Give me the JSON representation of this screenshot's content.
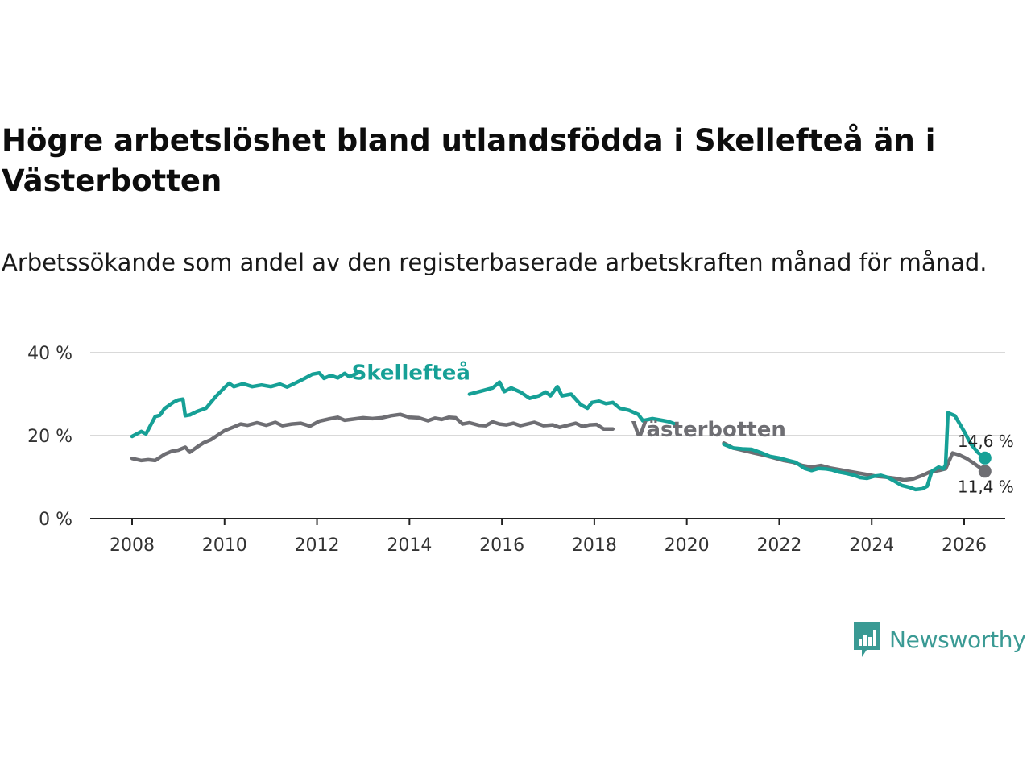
{
  "title": "Högre arbetslöshet bland utlandsfödda i Skellefteå än i Västerbotten",
  "subtitle": "Arbetssökande som andel av den registerbaserade arbetskraften månad för månad.",
  "brand": {
    "name": "Newsworthy",
    "icon": "newsworthy-logo-icon",
    "color": "#3a9a94"
  },
  "chart_data": {
    "type": "line",
    "title": "Högre arbetslöshet bland utlandsfödda i Skellefteå än i Västerbotten",
    "subtitle": "Arbetssökande som andel av den registerbaserade arbetskraften månad för månad.",
    "xlabel": "",
    "ylabel": "",
    "xlim": [
      2008,
      2026
    ],
    "ylim": [
      0,
      40
    ],
    "grid": true,
    "x_ticks": [
      2008,
      2010,
      2012,
      2014,
      2016,
      2018,
      2020,
      2022,
      2024,
      2026
    ],
    "x_tick_labels": [
      "2008",
      "2010",
      "2012",
      "2014",
      "2016",
      "2018",
      "2020",
      "2022",
      "2024",
      "2026"
    ],
    "y_ticks": [
      0,
      20,
      40
    ],
    "y_tick_labels": [
      "0 %",
      "20 %",
      "40 %"
    ],
    "series": [
      {
        "name": "Skellefteå",
        "color": "#16a096",
        "label_at": [
          2012.75,
          33.5
        ],
        "end_label": "14,6 %",
        "end_value": 14.6,
        "points": [
          [
            2008.0,
            19.8
          ],
          [
            2008.2,
            21.0
          ],
          [
            2008.3,
            20.4
          ],
          [
            2008.5,
            24.6
          ],
          [
            2008.6,
            24.9
          ],
          [
            2008.7,
            26.5
          ],
          [
            2008.8,
            27.3
          ],
          [
            2008.9,
            28.1
          ],
          [
            2009.0,
            28.6
          ],
          [
            2009.1,
            28.8
          ],
          [
            2009.15,
            24.8
          ],
          [
            2009.25,
            25.0
          ],
          [
            2009.4,
            25.8
          ],
          [
            2009.6,
            26.6
          ],
          [
            2009.8,
            29.3
          ],
          [
            2010.0,
            31.6
          ],
          [
            2010.1,
            32.6
          ],
          [
            2010.2,
            31.8
          ],
          [
            2010.4,
            32.5
          ],
          [
            2010.6,
            31.8
          ],
          [
            2010.8,
            32.2
          ],
          [
            2011.0,
            31.8
          ],
          [
            2011.2,
            32.4
          ],
          [
            2011.35,
            31.7
          ],
          [
            2011.5,
            32.5
          ],
          [
            2011.7,
            33.6
          ],
          [
            2011.9,
            34.8
          ],
          [
            2012.05,
            35.1
          ],
          [
            2012.15,
            33.8
          ],
          [
            2012.3,
            34.5
          ],
          [
            2012.45,
            33.9
          ],
          [
            2012.6,
            35.0
          ],
          [
            2012.7,
            34.2
          ],
          [
            2012.9,
            35.2
          ],
          [
            2015.3,
            30.0
          ],
          [
            2015.6,
            30.9
          ],
          [
            2015.8,
            31.5
          ],
          [
            2015.95,
            32.9
          ],
          [
            2016.05,
            30.6
          ],
          [
            2016.2,
            31.5
          ],
          [
            2016.4,
            30.5
          ],
          [
            2016.6,
            29.0
          ],
          [
            2016.8,
            29.6
          ],
          [
            2016.95,
            30.5
          ],
          [
            2017.05,
            29.6
          ],
          [
            2017.2,
            31.8
          ],
          [
            2017.3,
            29.6
          ],
          [
            2017.5,
            30.0
          ],
          [
            2017.7,
            27.5
          ],
          [
            2017.85,
            26.6
          ],
          [
            2017.95,
            28.0
          ],
          [
            2018.1,
            28.3
          ],
          [
            2018.25,
            27.7
          ],
          [
            2018.4,
            28.0
          ],
          [
            2018.55,
            26.6
          ],
          [
            2018.75,
            26.1
          ],
          [
            2018.95,
            25.1
          ],
          [
            2019.05,
            23.6
          ],
          [
            2019.25,
            24.1
          ],
          [
            2019.45,
            23.7
          ],
          [
            2019.6,
            23.4
          ],
          [
            2019.75,
            22.8
          ],
          [
            2020.8,
            17.9
          ],
          [
            2021.0,
            17.0
          ],
          [
            2021.2,
            16.8
          ],
          [
            2021.4,
            16.7
          ],
          [
            2021.6,
            15.9
          ],
          [
            2021.8,
            15.0
          ],
          [
            2022.0,
            14.6
          ],
          [
            2022.2,
            14.0
          ],
          [
            2022.35,
            13.6
          ],
          [
            2022.55,
            12.1
          ],
          [
            2022.7,
            11.6
          ],
          [
            2022.85,
            12.1
          ],
          [
            2023.0,
            12.0
          ],
          [
            2023.15,
            11.7
          ],
          [
            2023.3,
            11.2
          ],
          [
            2023.45,
            10.9
          ],
          [
            2023.6,
            10.5
          ],
          [
            2023.75,
            9.9
          ],
          [
            2023.9,
            9.7
          ],
          [
            2024.05,
            10.2
          ],
          [
            2024.2,
            10.4
          ],
          [
            2024.35,
            9.9
          ],
          [
            2024.5,
            9.0
          ],
          [
            2024.65,
            8.0
          ],
          [
            2024.8,
            7.6
          ],
          [
            2024.95,
            7.0
          ],
          [
            2025.1,
            7.2
          ],
          [
            2025.2,
            7.8
          ],
          [
            2025.3,
            11.4
          ],
          [
            2025.45,
            12.4
          ],
          [
            2025.55,
            12.0
          ],
          [
            2025.6,
            13.0
          ],
          [
            2025.65,
            25.5
          ],
          [
            2025.8,
            24.8
          ],
          [
            2025.9,
            22.9
          ],
          [
            2026.0,
            21.0
          ],
          [
            2026.15,
            17.9
          ],
          [
            2026.3,
            15.9
          ],
          [
            2026.45,
            14.6
          ]
        ]
      },
      {
        "name": "Västerbotten",
        "color": "#6e6e73",
        "label_at": [
          2018.8,
          19.8
        ],
        "end_label": "11,4 %",
        "end_value": 11.4,
        "points": [
          [
            2008.0,
            14.5
          ],
          [
            2008.2,
            14.0
          ],
          [
            2008.35,
            14.2
          ],
          [
            2008.5,
            14.0
          ],
          [
            2008.7,
            15.5
          ],
          [
            2008.85,
            16.2
          ],
          [
            2009.0,
            16.5
          ],
          [
            2009.15,
            17.2
          ],
          [
            2009.25,
            16.0
          ],
          [
            2009.4,
            17.2
          ],
          [
            2009.55,
            18.3
          ],
          [
            2009.7,
            19.0
          ],
          [
            2009.85,
            20.1
          ],
          [
            2010.0,
            21.2
          ],
          [
            2010.2,
            22.1
          ],
          [
            2010.35,
            22.8
          ],
          [
            2010.5,
            22.5
          ],
          [
            2010.7,
            23.1
          ],
          [
            2010.9,
            22.5
          ],
          [
            2011.1,
            23.2
          ],
          [
            2011.25,
            22.4
          ],
          [
            2011.45,
            22.8
          ],
          [
            2011.65,
            23.0
          ],
          [
            2011.85,
            22.3
          ],
          [
            2012.05,
            23.5
          ],
          [
            2012.25,
            24.0
          ],
          [
            2012.45,
            24.4
          ],
          [
            2012.6,
            23.7
          ],
          [
            2012.8,
            24.0
          ],
          [
            2013.0,
            24.3
          ],
          [
            2013.2,
            24.1
          ],
          [
            2013.4,
            24.3
          ],
          [
            2013.6,
            24.8
          ],
          [
            2013.8,
            25.1
          ],
          [
            2014.0,
            24.4
          ],
          [
            2014.2,
            24.3
          ],
          [
            2014.4,
            23.6
          ],
          [
            2014.55,
            24.2
          ],
          [
            2014.7,
            23.9
          ],
          [
            2014.85,
            24.4
          ],
          [
            2015.0,
            24.3
          ],
          [
            2015.15,
            22.8
          ],
          [
            2015.3,
            23.1
          ],
          [
            2015.5,
            22.5
          ],
          [
            2015.65,
            22.4
          ],
          [
            2015.8,
            23.3
          ],
          [
            2015.95,
            22.8
          ],
          [
            2016.1,
            22.6
          ],
          [
            2016.25,
            23.0
          ],
          [
            2016.4,
            22.4
          ],
          [
            2016.55,
            22.8
          ],
          [
            2016.7,
            23.2
          ],
          [
            2016.9,
            22.4
          ],
          [
            2017.1,
            22.6
          ],
          [
            2017.25,
            22.0
          ],
          [
            2017.4,
            22.4
          ],
          [
            2017.6,
            23.0
          ],
          [
            2017.75,
            22.2
          ],
          [
            2017.9,
            22.6
          ],
          [
            2018.05,
            22.7
          ],
          [
            2018.2,
            21.6
          ],
          [
            2018.4,
            21.6
          ],
          [
            2020.8,
            18.2
          ],
          [
            2021.0,
            17.0
          ],
          [
            2021.2,
            16.5
          ],
          [
            2021.45,
            15.8
          ],
          [
            2021.7,
            15.2
          ],
          [
            2021.9,
            14.6
          ],
          [
            2022.1,
            14.0
          ],
          [
            2022.3,
            13.6
          ],
          [
            2022.5,
            12.8
          ],
          [
            2022.7,
            12.4
          ],
          [
            2022.9,
            12.8
          ],
          [
            2023.1,
            12.2
          ],
          [
            2023.3,
            11.8
          ],
          [
            2023.5,
            11.4
          ],
          [
            2023.7,
            11.0
          ],
          [
            2023.9,
            10.6
          ],
          [
            2024.1,
            10.2
          ],
          [
            2024.3,
            10.0
          ],
          [
            2024.5,
            9.7
          ],
          [
            2024.7,
            9.3
          ],
          [
            2024.9,
            9.6
          ],
          [
            2025.1,
            10.4
          ],
          [
            2025.25,
            11.2
          ],
          [
            2025.45,
            11.6
          ],
          [
            2025.6,
            12.0
          ],
          [
            2025.75,
            15.8
          ],
          [
            2025.9,
            15.3
          ],
          [
            2026.05,
            14.5
          ],
          [
            2026.2,
            13.4
          ],
          [
            2026.35,
            12.2
          ],
          [
            2026.45,
            11.4
          ]
        ]
      }
    ]
  }
}
